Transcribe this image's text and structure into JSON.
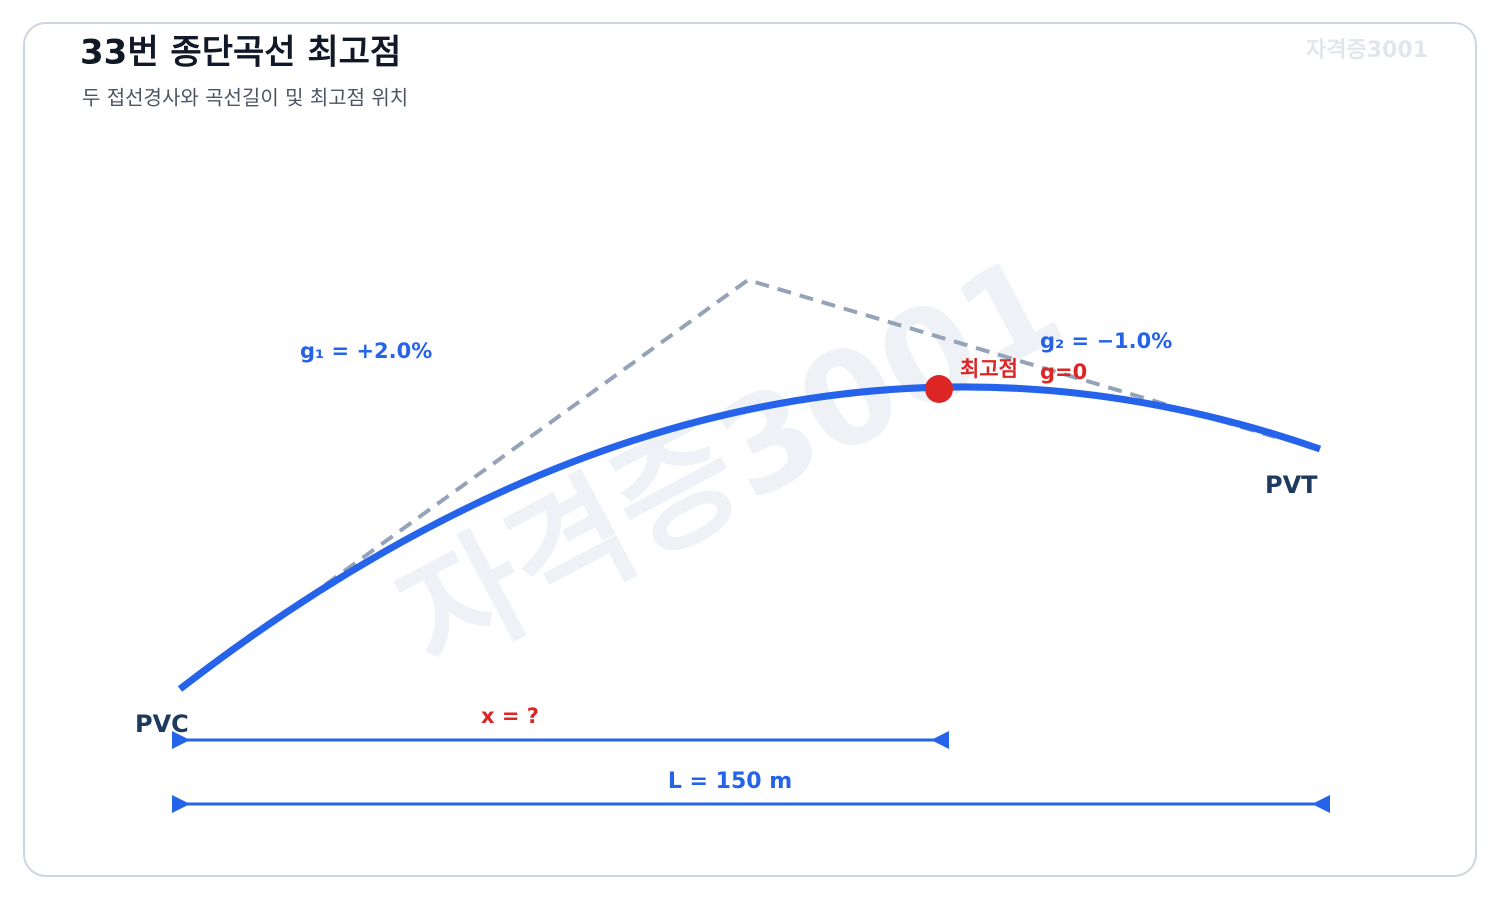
{
  "header": {
    "title": "33번 종단곡선 최고점",
    "subtitle": "두 접선경사와 곡선길이 및 최고점 위치",
    "watermark": "자격증3001"
  },
  "diagram": {
    "watermark": "자격증3001",
    "grade_1": "g₁ = +2.0%",
    "grade_2": "g₂ = −1.0%",
    "high_point": "최고점",
    "zero_grade": "g=0",
    "start": "PVC",
    "end": "PVT",
    "distance_x": "x = ?",
    "length": "L = 150 m"
  }
}
